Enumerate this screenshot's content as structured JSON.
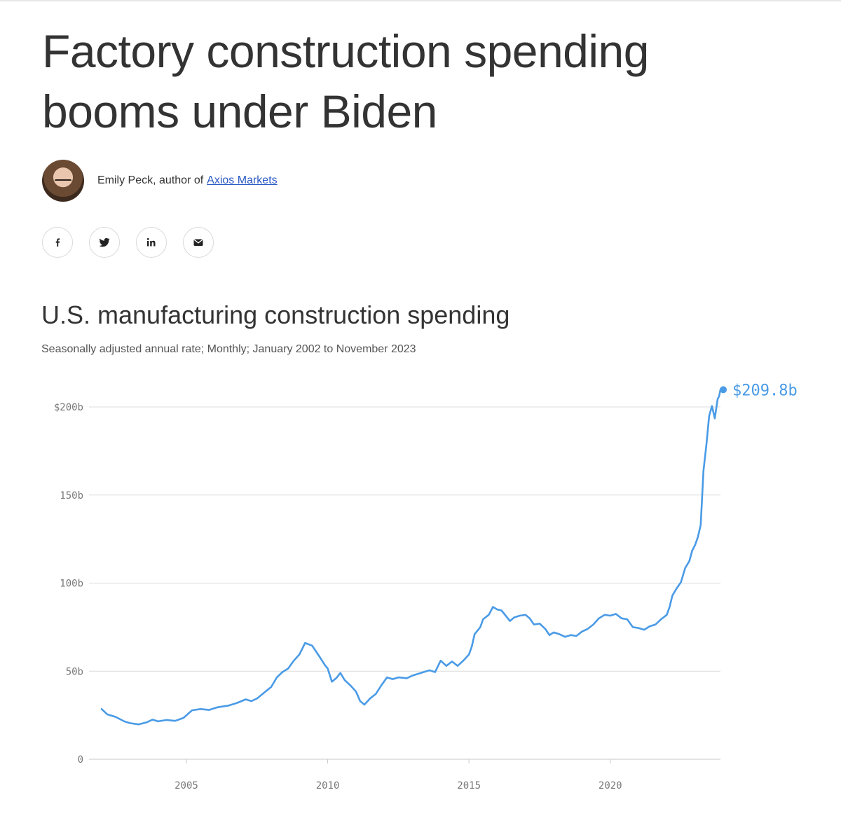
{
  "article": {
    "headline": "Factory construction spending booms under Biden",
    "author_text": "Emily Peck, author of",
    "author_link": "Axios Markets"
  },
  "share": [
    {
      "icon": "facebook-icon"
    },
    {
      "icon": "twitter-icon"
    },
    {
      "icon": "linkedin-icon"
    },
    {
      "icon": "email-icon"
    }
  ],
  "colors": {
    "line": "#4a9be6",
    "grid": "#dcdcdc",
    "text": "#333333",
    "link": "#2b59c3"
  },
  "chart_data": {
    "type": "line",
    "title": "U.S. manufacturing construction spending",
    "subtitle": "Seasonally adjusted annual rate; Monthly; January 2002 to November 2023",
    "xlabel": "",
    "ylabel": "",
    "xlim": [
      2002.0,
      2023.9
    ],
    "ylim": [
      0,
      200
    ],
    "yticks": [
      0,
      50,
      100,
      150,
      200
    ],
    "ytick_labels": [
      "0",
      "50b",
      "100b",
      "150b",
      "$200b"
    ],
    "xticks": [
      2005,
      2010,
      2015,
      2020
    ],
    "xtick_labels": [
      "2005",
      "2010",
      "2015",
      "2020"
    ],
    "grid": true,
    "end_label": "$209.8b",
    "series": [
      {
        "points": [
          [
            2002.0,
            28.5
          ],
          [
            2002.2,
            25.5
          ],
          [
            2002.5,
            24.0
          ],
          [
            2002.8,
            21.5
          ],
          [
            2003.0,
            20.5
          ],
          [
            2003.3,
            19.8
          ],
          [
            2003.6,
            21.0
          ],
          [
            2003.8,
            22.5
          ],
          [
            2004.0,
            21.5
          ],
          [
            2004.3,
            22.3
          ],
          [
            2004.6,
            21.8
          ],
          [
            2004.9,
            23.5
          ],
          [
            2005.2,
            27.8
          ],
          [
            2005.5,
            28.5
          ],
          [
            2005.8,
            28.0
          ],
          [
            2006.1,
            29.5
          ],
          [
            2006.5,
            30.5
          ],
          [
            2006.8,
            32.0
          ],
          [
            2007.1,
            34.0
          ],
          [
            2007.3,
            33.0
          ],
          [
            2007.5,
            34.5
          ],
          [
            2007.8,
            38.5
          ],
          [
            2008.0,
            41.0
          ],
          [
            2008.2,
            46.5
          ],
          [
            2008.4,
            49.5
          ],
          [
            2008.6,
            51.5
          ],
          [
            2008.8,
            56.0
          ],
          [
            2009.0,
            59.5
          ],
          [
            2009.2,
            66.0
          ],
          [
            2009.45,
            64.5
          ],
          [
            2009.7,
            58.5
          ],
          [
            2009.9,
            53.5
          ],
          [
            2010.0,
            51.5
          ],
          [
            2010.15,
            44.0
          ],
          [
            2010.3,
            46.0
          ],
          [
            2010.45,
            49.0
          ],
          [
            2010.6,
            45.0
          ],
          [
            2010.8,
            42.0
          ],
          [
            2011.0,
            38.5
          ],
          [
            2011.15,
            33.0
          ],
          [
            2011.3,
            31.0
          ],
          [
            2011.5,
            34.5
          ],
          [
            2011.7,
            37.0
          ],
          [
            2011.9,
            42.0
          ],
          [
            2012.1,
            46.5
          ],
          [
            2012.3,
            45.5
          ],
          [
            2012.5,
            46.5
          ],
          [
            2012.8,
            46.0
          ],
          [
            2013.0,
            47.5
          ],
          [
            2013.3,
            49.0
          ],
          [
            2013.6,
            50.5
          ],
          [
            2013.8,
            49.5
          ],
          [
            2014.0,
            56.0
          ],
          [
            2014.2,
            53.0
          ],
          [
            2014.4,
            55.5
          ],
          [
            2014.6,
            53.0
          ],
          [
            2014.8,
            56.0
          ],
          [
            2015.0,
            59.5
          ],
          [
            2015.1,
            64.0
          ],
          [
            2015.2,
            71.0
          ],
          [
            2015.4,
            75.0
          ],
          [
            2015.5,
            79.5
          ],
          [
            2015.7,
            82.0
          ],
          [
            2015.85,
            86.5
          ],
          [
            2016.0,
            85.0
          ],
          [
            2016.15,
            84.5
          ],
          [
            2016.3,
            81.5
          ],
          [
            2016.45,
            78.5
          ],
          [
            2016.6,
            80.5
          ],
          [
            2016.8,
            81.5
          ],
          [
            2017.0,
            82.0
          ],
          [
            2017.15,
            80.0
          ],
          [
            2017.3,
            76.5
          ],
          [
            2017.5,
            77.0
          ],
          [
            2017.7,
            74.0
          ],
          [
            2017.85,
            70.5
          ],
          [
            2018.0,
            72.0
          ],
          [
            2018.2,
            71.0
          ],
          [
            2018.4,
            69.5
          ],
          [
            2018.6,
            70.5
          ],
          [
            2018.8,
            70.0
          ],
          [
            2019.0,
            72.5
          ],
          [
            2019.2,
            74.0
          ],
          [
            2019.4,
            76.5
          ],
          [
            2019.6,
            80.0
          ],
          [
            2019.8,
            82.0
          ],
          [
            2020.0,
            81.5
          ],
          [
            2020.2,
            82.5
          ],
          [
            2020.4,
            80.0
          ],
          [
            2020.6,
            79.5
          ],
          [
            2020.8,
            75.0
          ],
          [
            2021.0,
            74.5
          ],
          [
            2021.2,
            73.5
          ],
          [
            2021.4,
            75.5
          ],
          [
            2021.6,
            76.5
          ],
          [
            2021.8,
            79.5
          ],
          [
            2022.0,
            82.0
          ],
          [
            2022.1,
            86.5
          ],
          [
            2022.2,
            93.0
          ],
          [
            2022.35,
            97.0
          ],
          [
            2022.5,
            100.5
          ],
          [
            2022.65,
            108.5
          ],
          [
            2022.8,
            112.5
          ],
          [
            2022.9,
            118.5
          ],
          [
            2023.0,
            121.5
          ],
          [
            2023.1,
            126.0
          ],
          [
            2023.2,
            133.0
          ],
          [
            2023.3,
            164.0
          ],
          [
            2023.4,
            178.0
          ],
          [
            2023.5,
            195.0
          ],
          [
            2023.6,
            200.5
          ],
          [
            2023.7,
            193.5
          ],
          [
            2023.8,
            204.5
          ],
          [
            2023.85,
            206.0
          ],
          [
            2023.9,
            209.8
          ]
        ]
      }
    ]
  }
}
